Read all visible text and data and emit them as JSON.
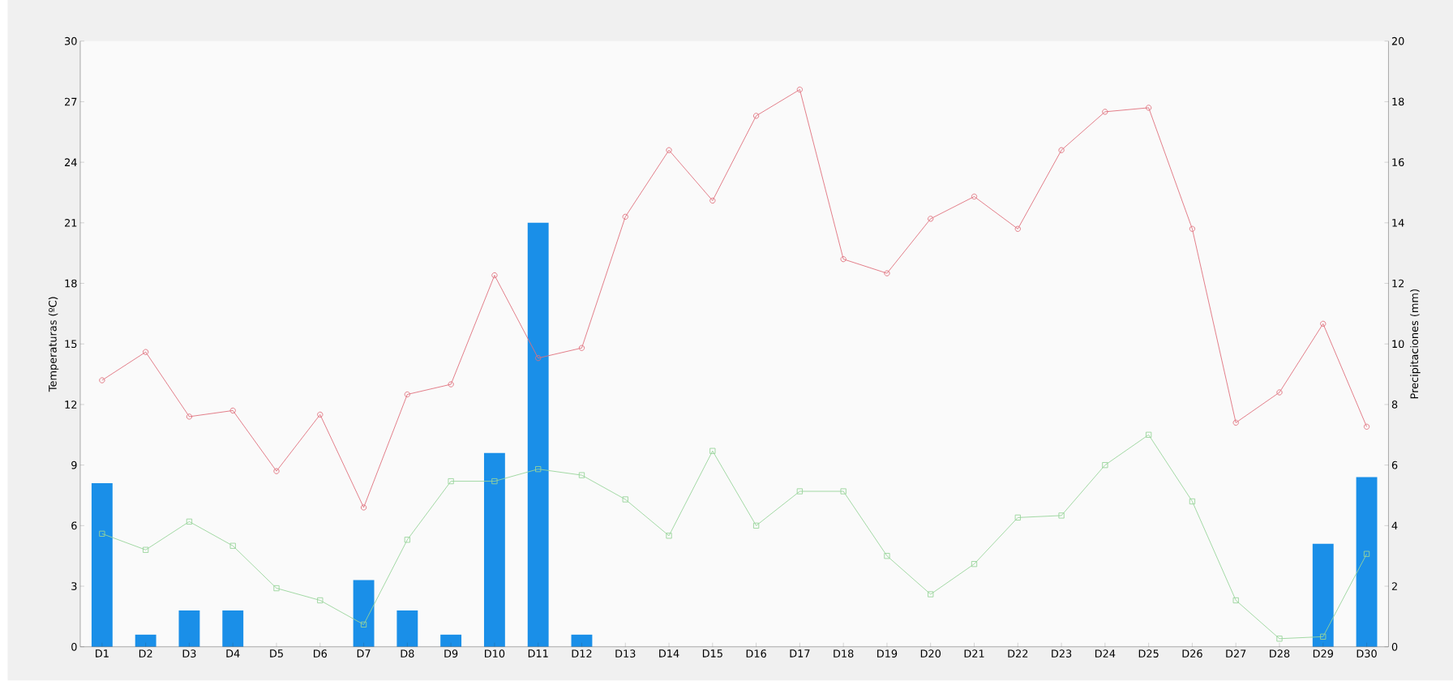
{
  "chart_data": {
    "type": "line",
    "ylabel": "Temperaturas (ºC)",
    "y2label": "Precipitaciones (mm)",
    "categories": [
      "D1",
      "D2",
      "D3",
      "D4",
      "D5",
      "D6",
      "D7",
      "D8",
      "D9",
      "D10",
      "D11",
      "D12",
      "D13",
      "D14",
      "D15",
      "D16",
      "D17",
      "D18",
      "D19",
      "D20",
      "D21",
      "D22",
      "D23",
      "D24",
      "D25",
      "D26",
      "D27",
      "D28",
      "D29",
      "D30"
    ],
    "series": [
      {
        "type": "bar",
        "axis": "y2",
        "color": "#1a8fe8",
        "values": [
          5.4,
          0.4,
          1.2,
          1.2,
          0,
          0,
          2.2,
          1.2,
          0.4,
          6.4,
          14.0,
          0.4,
          0,
          0,
          0,
          0,
          0,
          0,
          0,
          0,
          0,
          0,
          0,
          0,
          0,
          0,
          0,
          0,
          3.4,
          5.6
        ]
      },
      {
        "color": "#e0707c",
        "marker": "circle",
        "values": [
          13.2,
          14.6,
          11.4,
          11.7,
          8.7,
          11.5,
          6.9,
          12.5,
          13.0,
          18.4,
          14.3,
          14.8,
          21.3,
          24.6,
          22.1,
          26.3,
          27.6,
          19.2,
          18.5,
          21.2,
          22.3,
          20.7,
          24.6,
          26.5,
          26.7,
          20.7,
          11.1,
          12.6,
          16.0,
          10.9
        ]
      },
      {
        "color": "#98d49a",
        "marker": "square",
        "values": [
          5.6,
          4.8,
          6.2,
          5.0,
          2.9,
          2.3,
          1.1,
          5.3,
          8.2,
          8.2,
          8.8,
          8.5,
          7.3,
          5.5,
          9.7,
          6.0,
          7.7,
          7.7,
          4.5,
          2.6,
          4.1,
          6.4,
          6.5,
          9.0,
          10.5,
          7.2,
          2.3,
          0.4,
          0.5,
          4.6
        ]
      }
    ],
    "ylim": [
      0,
      30
    ],
    "yticks": [
      0,
      3,
      6,
      9,
      12,
      15,
      18,
      21,
      24,
      27,
      30
    ],
    "y2lim": [
      0,
      20
    ],
    "y2ticks": [
      0,
      2,
      4,
      6,
      8,
      10,
      12,
      14,
      16,
      18,
      20
    ],
    "grid": false,
    "legend": false
  }
}
